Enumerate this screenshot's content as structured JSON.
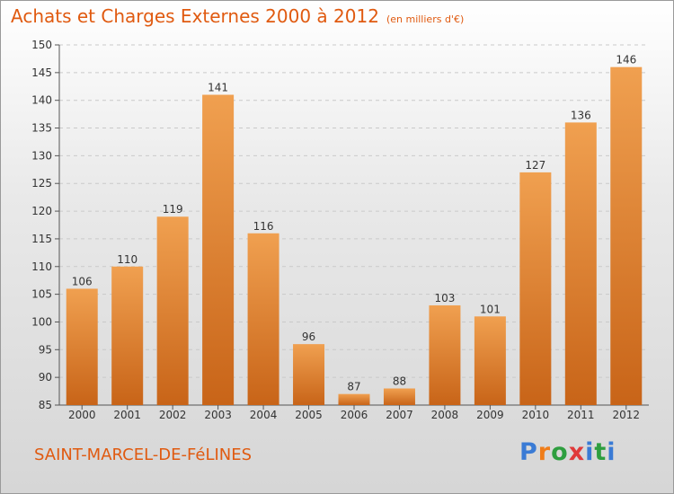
{
  "title": "Achats et Charges Externes 2000 à 2012",
  "unit": "(en milliers d'€)",
  "commune": "SAINT-MARCEL-DE-FéLINES",
  "logo": {
    "letters": [
      "P",
      "r",
      "o",
      "x",
      "i",
      "t",
      "i"
    ],
    "colors": [
      "#3a7bd5",
      "#f07d19",
      "#2e9e3f",
      "#e03a3a",
      "#3a7bd5",
      "#2e9e3f",
      "#3a7bd5"
    ]
  },
  "colors": {
    "bar": "#f0a050",
    "bar_dark": "#c86418",
    "grid": "#c9c9c9",
    "accent": "#e05a10"
  },
  "chart_data": {
    "type": "bar",
    "title": "Achats et Charges Externes 2000 à 2012",
    "categories": [
      "2000",
      "2001",
      "2002",
      "2003",
      "2004",
      "2005",
      "2006",
      "2007",
      "2008",
      "2009",
      "2010",
      "2011",
      "2012"
    ],
    "values": [
      106,
      110,
      119,
      141,
      116,
      96,
      87,
      88,
      103,
      101,
      127,
      136,
      146
    ],
    "ylim": [
      85,
      150
    ],
    "yticks": [
      85,
      90,
      95,
      100,
      105,
      110,
      115,
      120,
      125,
      130,
      135,
      140,
      145,
      150
    ],
    "grid": true
  }
}
